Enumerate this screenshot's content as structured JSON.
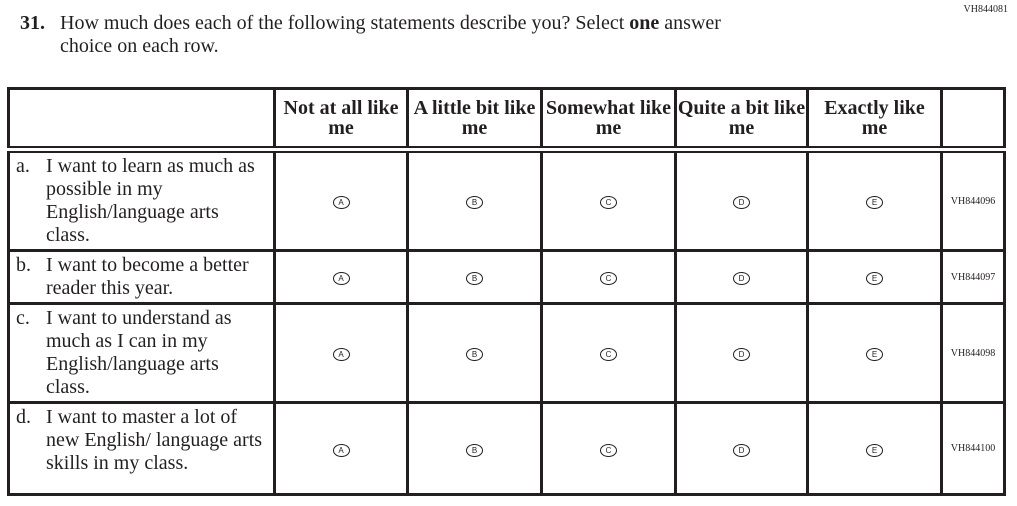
{
  "item_code": "VH844081",
  "question": {
    "number": "31.",
    "line1_pre": "How much does each of the following statements describe you? Select ",
    "line1_bold": "one",
    "line1_post": " answer",
    "line2": "choice on each row."
  },
  "columns": [
    "Not at all like me",
    "A little bit like me",
    "Somewhat like me",
    "Quite a bit like me",
    "Exactly like me"
  ],
  "options": [
    "A",
    "B",
    "C",
    "D",
    "E"
  ],
  "rows": [
    {
      "letter": "a.",
      "text": "I want to learn as much as possible in my English/language arts class.",
      "code": "VH844096"
    },
    {
      "letter": "b.",
      "text": "I want to become a better reader this year.",
      "code": "VH844097"
    },
    {
      "letter": "c.",
      "text": "I want to understand as much as I can in my English/language arts class.",
      "code": "VH844098"
    },
    {
      "letter": "d.",
      "text": "I want to master a lot of new English/ language arts skills in my class.",
      "code": "VH844100"
    }
  ]
}
